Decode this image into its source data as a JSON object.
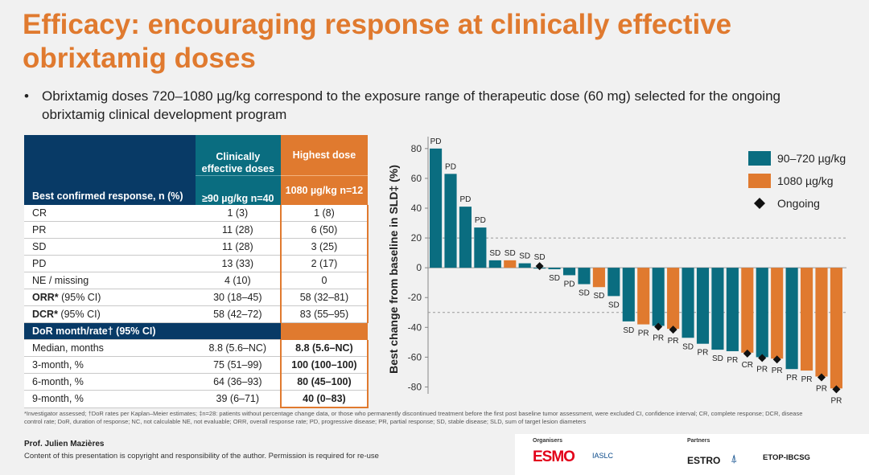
{
  "title": "Efficacy: encouraging response at clinically effective obrixtamig doses",
  "bullet": "Obrixtamig doses 720–1080 µg/kg correspond to the exposure range of therapeutic dose (60 mg) selected for the ongoing obrixtamig clinical development program",
  "table": {
    "header_label": "Best confirmed response, n (%)",
    "col1_title": "Clinically effective doses",
    "col1_sub": "≥90 µg/kg n=40",
    "col2_title": "Highest dose",
    "col2_sub": "1080 µg/kg n=12",
    "rows": [
      {
        "label": "CR",
        "c1": "1 (3)",
        "c2": "1 (8)"
      },
      {
        "label": "PR",
        "c1": "11 (28)",
        "c2": "6 (50)"
      },
      {
        "label": "SD",
        "c1": "11 (28)",
        "c2": "3 (25)"
      },
      {
        "label": "PD",
        "c1": "13 (33)",
        "c2": "2 (17)"
      },
      {
        "label": "NE / missing",
        "c1": "4 (10)",
        "c2": "0"
      },
      {
        "label_b": "ORR*",
        "label_r": " (95% CI)",
        "c1": "30 (18–45)",
        "c2": "58 (32–81)"
      },
      {
        "label_b": "DCR*",
        "label_r": " (95% CI)",
        "c1": "58 (42–72)",
        "c2": "83 (55–95)"
      }
    ],
    "dor_header": "DoR month/rate† (95% CI)",
    "dor_rows": [
      {
        "label": "Median, months",
        "c1": "8.8 (5.6–NC)",
        "c2": "8.8 (5.6–NC)"
      },
      {
        "label": "3-month, %",
        "c1": "75 (51–99)",
        "c2": "100 (100–100)"
      },
      {
        "label": "6-month, %",
        "c1": "64 (36–93)",
        "c2": "80 (45–100)"
      },
      {
        "label": "9-month, %",
        "c1": "39 (6–71)",
        "c2": "40 (0–83)"
      }
    ]
  },
  "chart_data": {
    "type": "bar",
    "ylabel": "Best change from baseline in SLD‡ (%)",
    "ylim": [
      -90,
      88
    ],
    "yticks": [
      80,
      60,
      40,
      20,
      0,
      -20,
      -40,
      -60,
      -80
    ],
    "reference_lines": [
      20,
      -30
    ],
    "series": [
      {
        "name": "90–720 µg/kg",
        "color": "#0a6d80"
      },
      {
        "name": "1080 µg/kg",
        "color": "#e07a2f"
      }
    ],
    "legend_ongoing": "Ongoing",
    "bars": [
      {
        "value": 80,
        "group": 0,
        "label": "PD",
        "ongoing": false
      },
      {
        "value": 63,
        "group": 0,
        "label": "PD",
        "ongoing": false
      },
      {
        "value": 41,
        "group": 0,
        "label": "PD",
        "ongoing": false
      },
      {
        "value": 27,
        "group": 0,
        "label": "PD",
        "ongoing": false
      },
      {
        "value": 5,
        "group": 0,
        "label": "SD",
        "ongoing": false
      },
      {
        "value": 5,
        "group": 1,
        "label": "SD",
        "ongoing": false
      },
      {
        "value": 3,
        "group": 0,
        "label": "SD",
        "ongoing": false
      },
      {
        "value": 0,
        "group": 0,
        "label": "SD",
        "ongoing": true
      },
      {
        "value": -1,
        "group": 0,
        "label": "SD",
        "ongoing": false
      },
      {
        "value": -5,
        "group": 0,
        "label": "PD",
        "ongoing": false
      },
      {
        "value": -11,
        "group": 0,
        "label": "SD",
        "ongoing": false
      },
      {
        "value": -13,
        "group": 1,
        "label": "SD",
        "ongoing": false
      },
      {
        "value": -19,
        "group": 0,
        "label": "SD",
        "ongoing": false
      },
      {
        "value": -36,
        "group": 0,
        "label": "SD",
        "ongoing": false
      },
      {
        "value": -38,
        "group": 1,
        "label": "PR",
        "ongoing": false
      },
      {
        "value": -39,
        "group": 0,
        "label": "PR",
        "ongoing": true
      },
      {
        "value": -41,
        "group": 1,
        "label": "PR",
        "ongoing": true
      },
      {
        "value": -47,
        "group": 0,
        "label": "SD",
        "ongoing": false
      },
      {
        "value": -51,
        "group": 0,
        "label": "PR",
        "ongoing": false
      },
      {
        "value": -55,
        "group": 0,
        "label": "SD",
        "ongoing": false
      },
      {
        "value": -56,
        "group": 0,
        "label": "PR",
        "ongoing": false
      },
      {
        "value": -57,
        "group": 1,
        "label": "CR",
        "ongoing": true
      },
      {
        "value": -60,
        "group": 0,
        "label": "PR",
        "ongoing": true
      },
      {
        "value": -61,
        "group": 1,
        "label": "PR",
        "ongoing": true
      },
      {
        "value": -68,
        "group": 0,
        "label": "PR",
        "ongoing": false
      },
      {
        "value": -69,
        "group": 1,
        "label": "PR",
        "ongoing": false
      },
      {
        "value": -73,
        "group": 1,
        "label": "PR",
        "ongoing": true
      },
      {
        "value": -81,
        "group": 1,
        "label": "PR",
        "ongoing": true
      }
    ]
  },
  "footnote": "*Investigator assessed; †DoR rates per Kaplan–Meier estimates; ‡n=28: patients without percentage change data, or those who permanently discontinued treatment before the first post baseline tumor assessment, were excluded CI, confidence interval; CR, complete response; DCR, disease control rate; DoR, duration of response; NC, not calculable NE, not evaluable; ORR, overall response rate; PD, progressive disease; PR, partial response; SD, stable disease; SLD, sum of target lesion diameters",
  "author": "Prof. Julien Mazières",
  "copyright": "Content of this presentation is copyright and responsibility of the author. Permission is required for re-use",
  "logos": {
    "organisers_label": "Organisers",
    "partners_label": "Partners",
    "esmo": "ESMO",
    "iaslc": "IASLC",
    "estro": "ESTRO",
    "etop": "ETOP-IBCSG"
  }
}
